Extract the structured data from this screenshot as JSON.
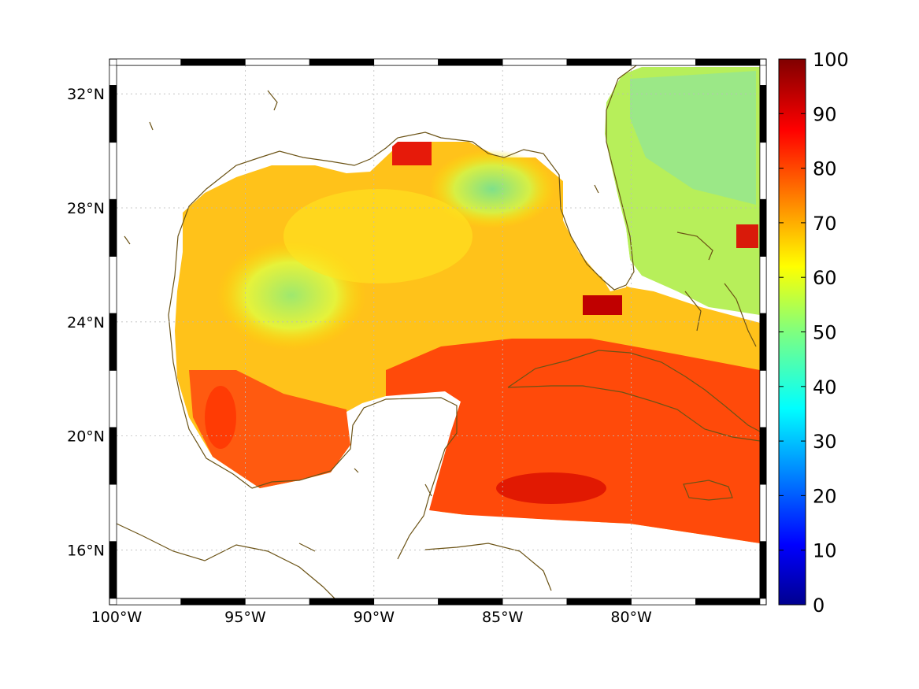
{
  "map": {
    "lon_ticks": [
      "100°W",
      "95°W",
      "90°W",
      "85°W",
      "80°W"
    ],
    "lat_ticks": [
      "32°N",
      "28°N",
      "24°N",
      "20°N",
      "16°N"
    ],
    "lon_values": [
      -100,
      -95,
      -90,
      -85,
      -80
    ],
    "lat_values": [
      32,
      28,
      24,
      20,
      16
    ],
    "lon_range": [
      -100,
      -75
    ],
    "lat_range": [
      14.3,
      33
    ],
    "colorbar": {
      "ticks": [
        "100",
        "90",
        "80",
        "70",
        "60",
        "50",
        "40",
        "30",
        "20",
        "10",
        "0"
      ],
      "range": [
        0,
        100
      ],
      "colormap": "jet"
    },
    "coast_color": "#6b5316",
    "grid": true
  }
}
